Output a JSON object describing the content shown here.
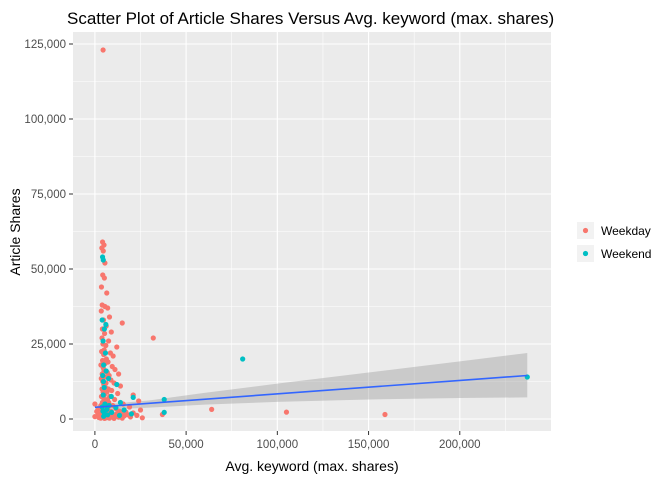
{
  "chart_data": {
    "type": "scatter",
    "title": "Scatter Plot of Article Shares Versus Avg. keyword (max. shares)",
    "xlabel": "Avg. keyword (max. shares)",
    "ylabel": "Article Shares",
    "xlim": [
      -12000,
      250000
    ],
    "ylim": [
      -4000,
      129000
    ],
    "x_ticks": [
      0,
      50000,
      100000,
      150000,
      200000
    ],
    "x_tick_labels": [
      "0",
      "50,000",
      "100,000",
      "150,000",
      "200,000"
    ],
    "y_ticks": [
      0,
      25000,
      50000,
      75000,
      100000,
      125000
    ],
    "y_tick_labels": [
      "0",
      "25,000",
      "50,000",
      "75,000",
      "100,000",
      "125,000"
    ],
    "grid": true,
    "legend_position": "right",
    "series": [
      {
        "name": "Weekday",
        "color": "#F8766D",
        "points": [
          [
            4500,
            123000
          ],
          [
            4200,
            59000
          ],
          [
            5000,
            58000
          ],
          [
            3800,
            57000
          ],
          [
            4600,
            56000
          ],
          [
            5500,
            52000
          ],
          [
            4300,
            48000
          ],
          [
            5200,
            47000
          ],
          [
            3600,
            44000
          ],
          [
            6500,
            42000
          ],
          [
            4000,
            38000
          ],
          [
            5500,
            37500
          ],
          [
            7000,
            37000
          ],
          [
            3500,
            36000
          ],
          [
            8000,
            34000
          ],
          [
            4700,
            33000
          ],
          [
            15000,
            32000
          ],
          [
            6200,
            31000
          ],
          [
            4100,
            30000
          ],
          [
            9000,
            29000
          ],
          [
            5300,
            28500
          ],
          [
            32000,
            27000
          ],
          [
            3900,
            27000
          ],
          [
            7500,
            26000
          ],
          [
            4400,
            25000
          ],
          [
            6000,
            24500
          ],
          [
            12000,
            24000
          ],
          [
            5100,
            23000
          ],
          [
            3700,
            22500
          ],
          [
            8500,
            22000
          ],
          [
            4800,
            21500
          ],
          [
            10000,
            21000
          ],
          [
            6300,
            20000
          ],
          [
            4200,
            19500
          ],
          [
            7200,
            19000
          ],
          [
            5600,
            18500
          ],
          [
            3300,
            18000
          ],
          [
            9500,
            17500
          ],
          [
            4600,
            17000
          ],
          [
            11000,
            16500
          ],
          [
            5000,
            16000
          ],
          [
            6800,
            15500
          ],
          [
            4000,
            15000
          ],
          [
            13000,
            15000
          ],
          [
            7800,
            14500
          ],
          [
            5400,
            14000
          ],
          [
            3500,
            13500
          ],
          [
            8800,
            13000
          ],
          [
            4300,
            12500
          ],
          [
            6100,
            12000
          ],
          [
            10500,
            12000
          ],
          [
            4900,
            11500
          ],
          [
            14000,
            11000
          ],
          [
            5800,
            10500
          ],
          [
            3900,
            10000
          ],
          [
            7400,
            10000
          ],
          [
            9200,
            9500
          ],
          [
            4500,
            9000
          ],
          [
            6600,
            9000
          ],
          [
            12500,
            8500
          ],
          [
            5200,
            8000
          ],
          [
            21000,
            8000
          ],
          [
            3600,
            7500
          ],
          [
            8100,
            7500
          ],
          [
            4700,
            7000
          ],
          [
            6900,
            6500
          ],
          [
            10800,
            6500
          ],
          [
            5500,
            6000
          ],
          [
            24000,
            6000
          ],
          [
            4100,
            5500
          ],
          [
            7600,
            5500
          ],
          [
            0,
            5000
          ],
          [
            15500,
            5000
          ],
          [
            5900,
            4500
          ],
          [
            3300,
            4500
          ],
          [
            9800,
            4500
          ],
          [
            4400,
            4000
          ],
          [
            6400,
            4000
          ],
          [
            19000,
            4000
          ],
          [
            5100,
            3500
          ],
          [
            2000,
            3500
          ],
          [
            11500,
            3500
          ],
          [
            4800,
            3000
          ],
          [
            7300,
            3000
          ],
          [
            25000,
            3000
          ],
          [
            3800,
            2800
          ],
          [
            64000,
            3200
          ],
          [
            13500,
            2600
          ],
          [
            5700,
            2500
          ],
          [
            1000,
            2500
          ],
          [
            9000,
            2500
          ],
          [
            17000,
            2300
          ],
          [
            4200,
            2200
          ],
          [
            6700,
            2200
          ],
          [
            21000,
            2000
          ],
          [
            105000,
            2300
          ],
          [
            3400,
            2000
          ],
          [
            8400,
            1900
          ],
          [
            12000,
            1800
          ],
          [
            5000,
            1700
          ],
          [
            14500,
            1700
          ],
          [
            37000,
            1500
          ],
          [
            2500,
            1500
          ],
          [
            7000,
            1500
          ],
          [
            18000,
            1400
          ],
          [
            4600,
            1300
          ],
          [
            10000,
            1300
          ],
          [
            159000,
            1500
          ],
          [
            3000,
            1200
          ],
          [
            6000,
            1200
          ],
          [
            23000,
            1200
          ],
          [
            1500,
            1000
          ],
          [
            8700,
            1000
          ],
          [
            16000,
            1000
          ],
          [
            4400,
            900
          ],
          [
            11000,
            900
          ],
          [
            5500,
            800
          ],
          [
            0,
            800
          ],
          [
            9500,
            700
          ],
          [
            19500,
            700
          ],
          [
            3700,
            600
          ],
          [
            7100,
            600
          ],
          [
            13000,
            600
          ],
          [
            4900,
            500
          ],
          [
            2200,
            500
          ],
          [
            6300,
            400
          ],
          [
            26000,
            400
          ],
          [
            3200,
            300
          ],
          [
            8000,
            300
          ],
          [
            15000,
            300
          ],
          [
            5300,
            200
          ],
          [
            10500,
            200
          ]
        ]
      },
      {
        "name": "Weekend",
        "color": "#00BFC4",
        "points": [
          [
            4200,
            54000
          ],
          [
            4600,
            53000
          ],
          [
            4000,
            33000
          ],
          [
            6000,
            31500
          ],
          [
            5200,
            30000
          ],
          [
            4500,
            26000
          ],
          [
            5800,
            22000
          ],
          [
            4800,
            18000
          ],
          [
            6200,
            16000
          ],
          [
            4300,
            14500
          ],
          [
            7500,
            13500
          ],
          [
            4700,
            12500
          ],
          [
            12000,
            11500
          ],
          [
            5100,
            10500
          ],
          [
            81000,
            20000
          ],
          [
            38000,
            6500
          ],
          [
            21000,
            7200
          ],
          [
            9000,
            7500
          ],
          [
            4600,
            8000
          ],
          [
            14000,
            5500
          ],
          [
            5500,
            5000
          ],
          [
            7800,
            4500
          ],
          [
            4000,
            4000
          ],
          [
            11500,
            3800
          ],
          [
            6600,
            3200
          ],
          [
            16000,
            3000
          ],
          [
            4400,
            2600
          ],
          [
            38000,
            2200
          ],
          [
            9200,
            2200
          ],
          [
            5300,
            1800
          ],
          [
            20000,
            1700
          ],
          [
            7000,
            1400
          ],
          [
            13500,
            1200
          ],
          [
            4800,
            900
          ],
          [
            237000,
            14000
          ]
        ]
      }
    ],
    "smooth_line": {
      "color": "#3366FF",
      "x": [
        0,
        237000
      ],
      "y": [
        3900,
        14500
      ]
    },
    "confidence_band": {
      "color": "#999999",
      "x": [
        0,
        8000,
        30000,
        60000,
        100000,
        150000,
        200000,
        237000
      ],
      "upper": [
        4800,
        5000,
        6200,
        8700,
        11800,
        15500,
        19200,
        22000
      ],
      "lower": [
        3000,
        3200,
        3800,
        4800,
        5700,
        6500,
        7000,
        7200
      ]
    }
  }
}
